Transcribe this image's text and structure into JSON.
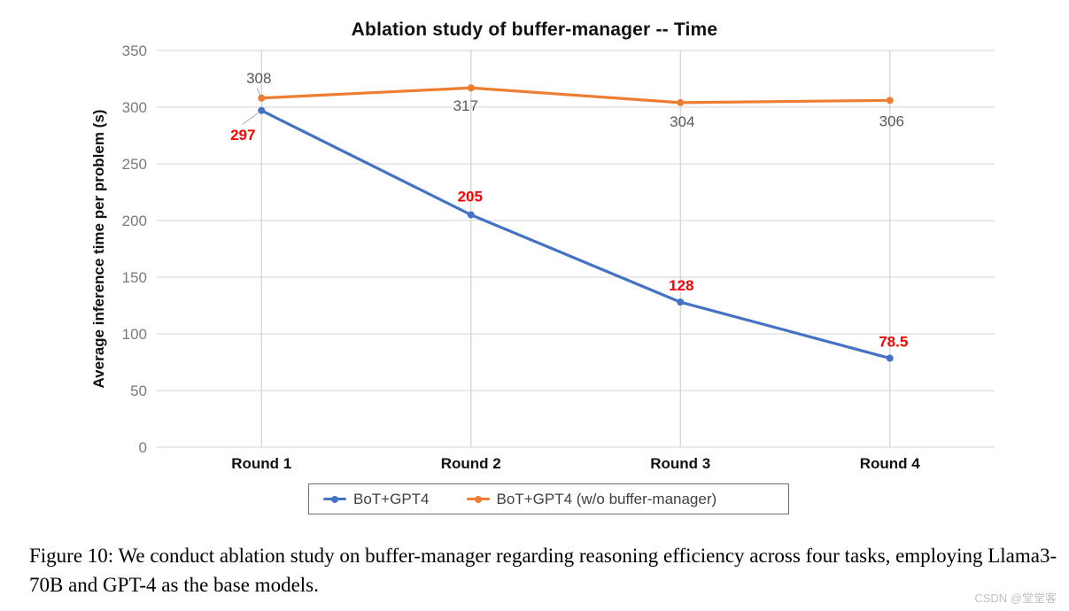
{
  "chart": {
    "title": "Ablation study of buffer-manager -- Time",
    "y_axis_title": "Average inference time per problem (s)"
  },
  "chart_data": {
    "type": "line",
    "title": "Ablation study of buffer-manager -- Time",
    "xlabel": "",
    "ylabel": "Average inference time per problem (s)",
    "categories": [
      "Round 1",
      "Round 2",
      "Round 3",
      "Round 4"
    ],
    "series": [
      {
        "name": "BoT+GPT4",
        "color": "#4472C4",
        "values": [
          297,
          205,
          128,
          78.5
        ],
        "point_labels": [
          "297",
          "205",
          "128",
          "78.5"
        ],
        "label_color": "#FF0000",
        "label_bold": true
      },
      {
        "name": "BoT+GPT4 (w/o buffer-manager)",
        "color": "#ED7D31",
        "values": [
          308,
          317,
          304,
          306
        ],
        "point_labels": [
          "308",
          "317",
          "304",
          "306"
        ],
        "label_color": "#595959",
        "label_bold": false
      }
    ],
    "ylim": [
      0,
      350
    ],
    "y_ticks": [
      0,
      50,
      100,
      150,
      200,
      250,
      300,
      350
    ],
    "grid": true,
    "legend_position": "bottom"
  },
  "caption": {
    "text": "Figure 10: We conduct ablation study on buffer-manager regarding reasoning efficiency across four tasks, employing Llama3-70B and GPT-4 as the base models."
  },
  "watermark": {
    "text": "CSDN @堂堂客"
  }
}
